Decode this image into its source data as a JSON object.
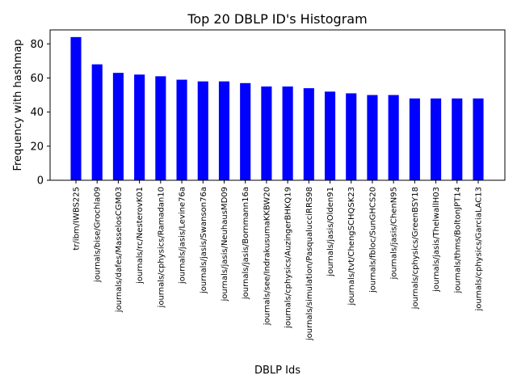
{
  "chart_data": {
    "type": "bar",
    "title": "Top 20 DBLP ID's Histogram",
    "xlabel": "DBLP Ids",
    "ylabel": "Frequency with hashmap",
    "categories": [
      "tr/ibm/IWBS225",
      "journals/bise/Grochla09",
      "journals/dafes/MasselosCGM03",
      "journals/rc/NesterovK01",
      "journals/cphysics/Ramadan10",
      "journals/jasis/Levine76a",
      "journals/jasis/Swanson76a",
      "journals/jasis/NeuhausMD09",
      "journals/jasis/Bornmann16a",
      "journals/see/IndrakusumaKKBW20",
      "journals/cphysics/AuzingerBHKQ19",
      "journals/simulation/PasqualucciRRS98",
      "journals/jasis/Olden91",
      "journals/tvt/ChengSCHQSK23",
      "journals/fbloc/SunGHCS20",
      "journals/jasis/ChenN95",
      "journals/cphysics/GreenBSY18",
      "journals/jasis/ThelwallH03",
      "journals/thms/BoltonJPT14",
      "journals/cphysics/GarciaLAC13"
    ],
    "values": [
      84,
      68,
      63,
      62,
      61,
      59,
      58,
      58,
      57,
      55,
      55,
      54,
      52,
      51,
      50,
      50,
      48,
      48,
      48,
      48
    ],
    "ylim": [
      0,
      88.2
    ],
    "yticks": [
      0,
      20,
      40,
      60,
      80
    ],
    "bar_color": "#0000ff",
    "grid": false,
    "legend": "none"
  }
}
